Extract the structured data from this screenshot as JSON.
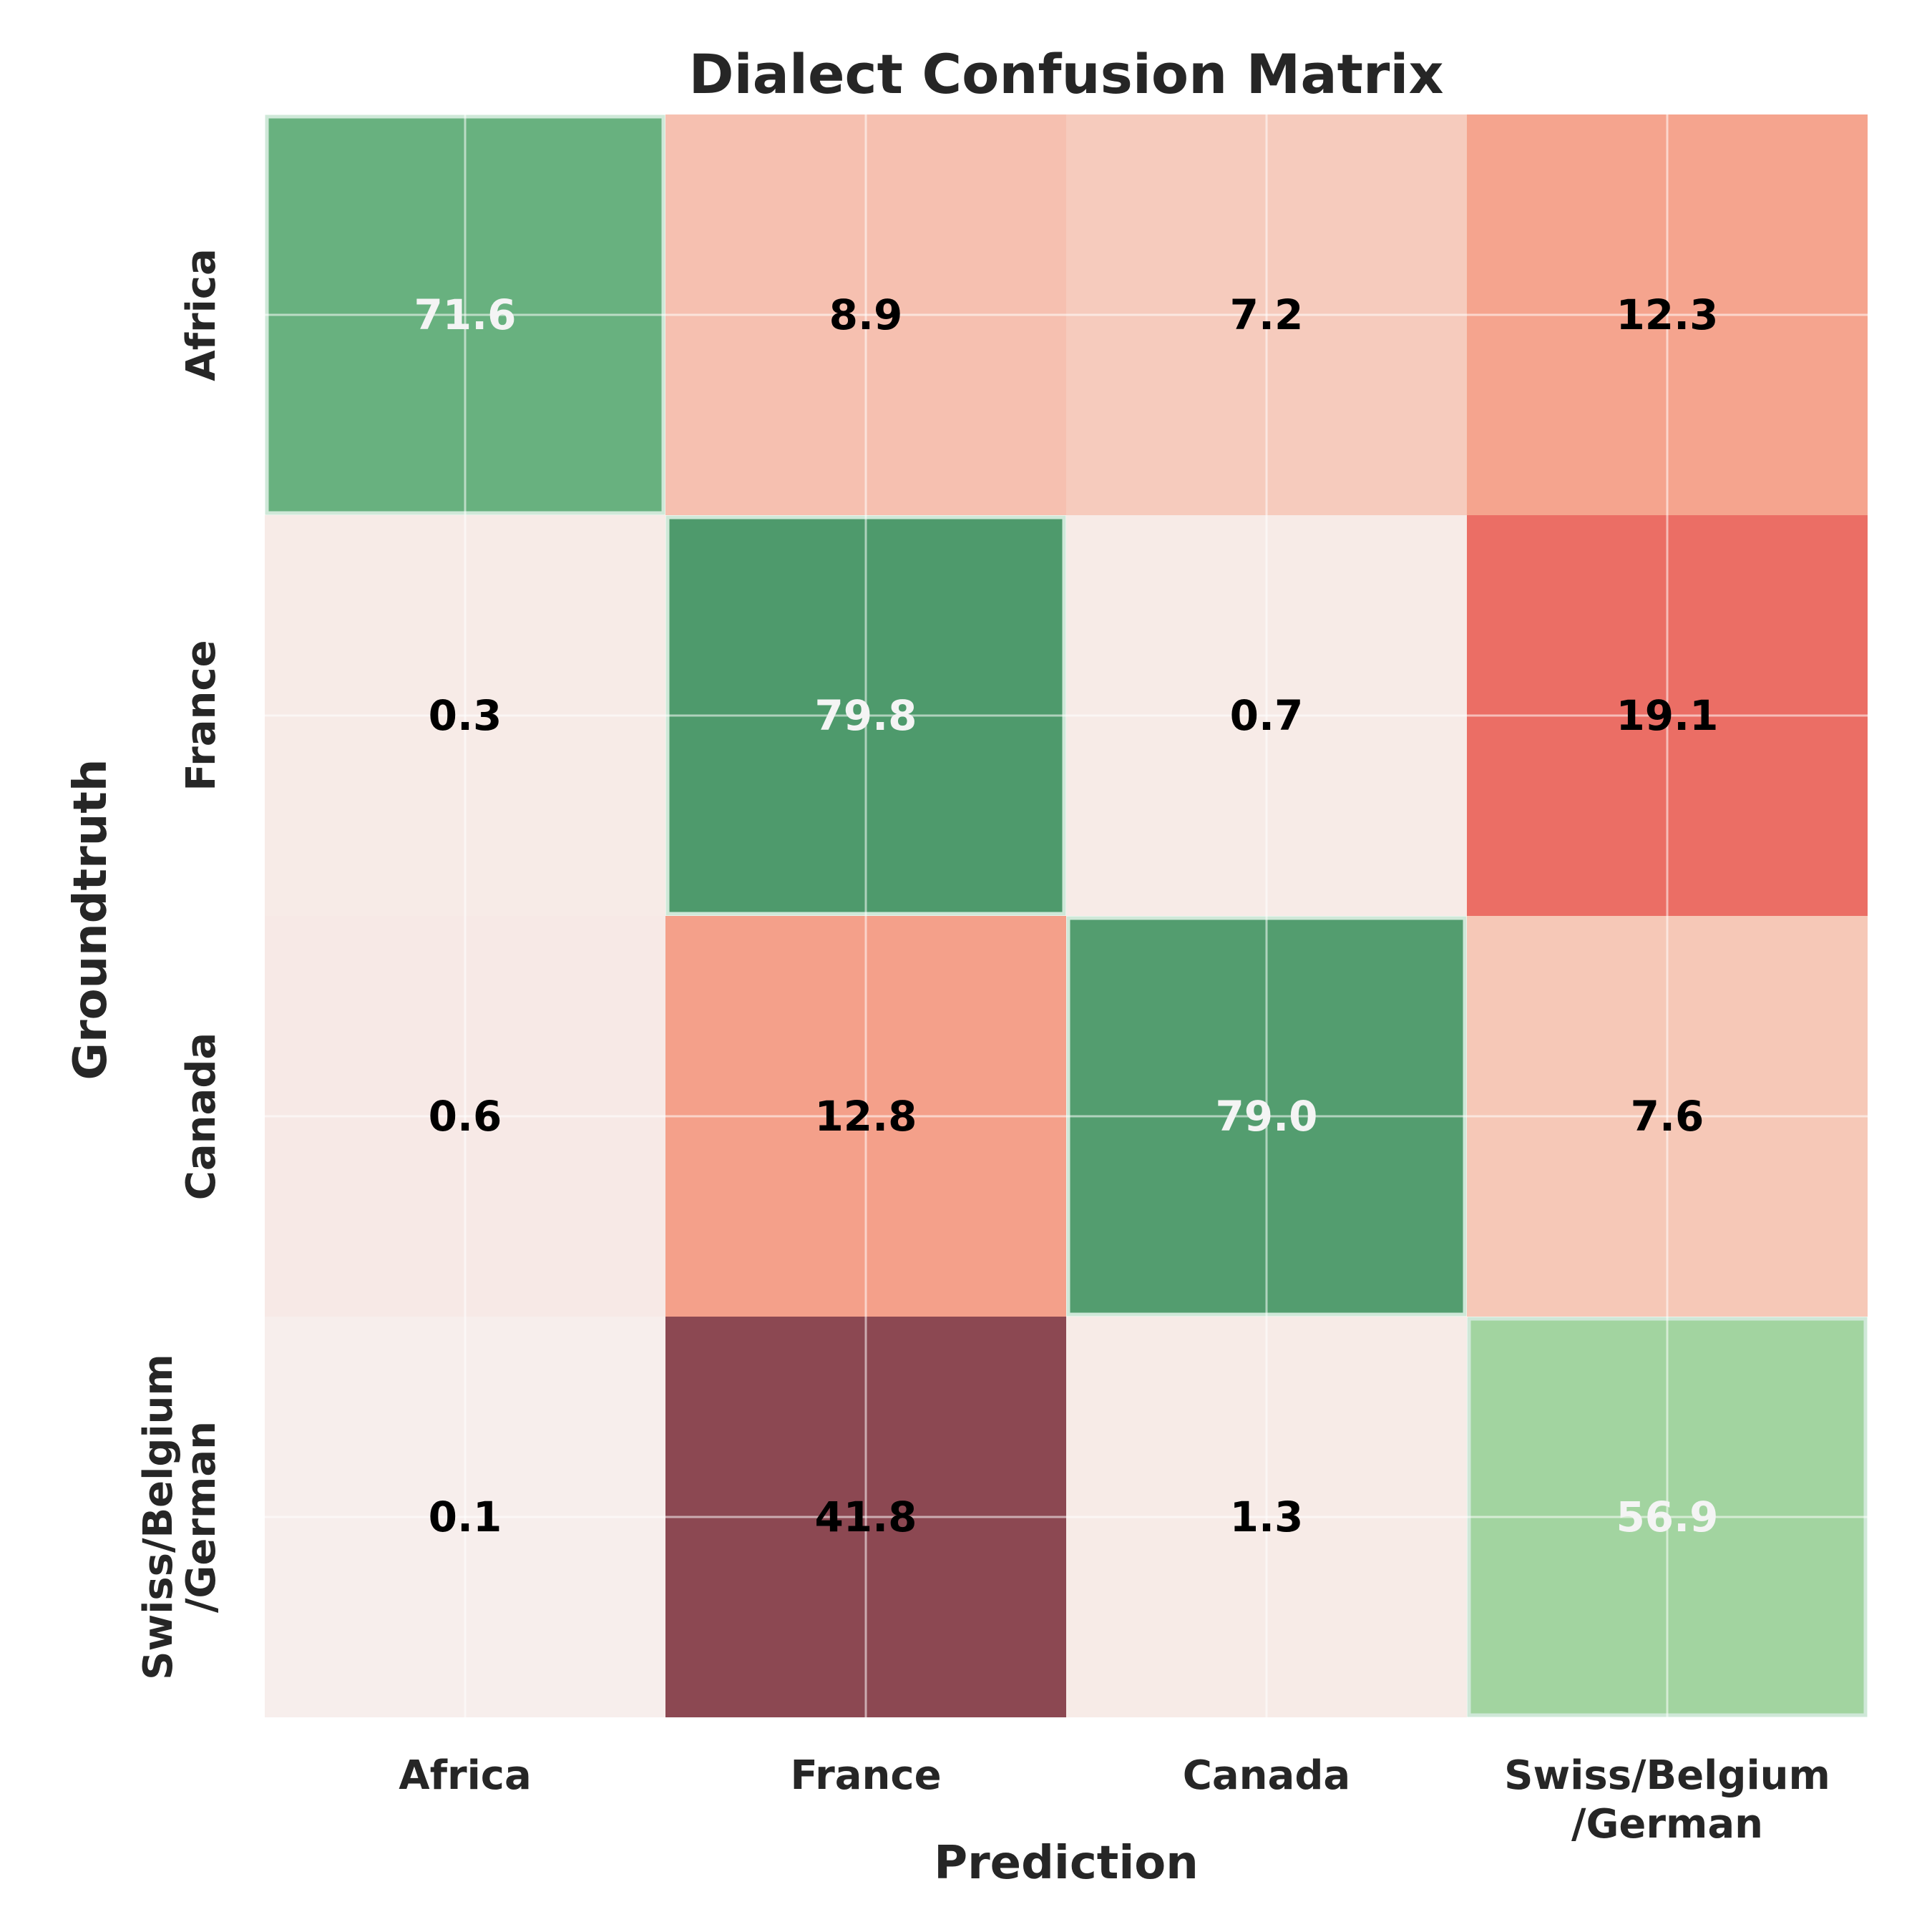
{
  "chart_data": {
    "type": "heatmap",
    "title": "Dialect Confusion Matrix",
    "xlabel": "Prediction",
    "ylabel": "Groundtruth",
    "x_categories": [
      [
        "Africa"
      ],
      [
        "France"
      ],
      [
        "Canada"
      ],
      [
        "Swiss/Belgium",
        "/German"
      ]
    ],
    "y_categories": [
      [
        "Africa"
      ],
      [
        "France"
      ],
      [
        "Canada"
      ],
      [
        "Swiss/Belgium",
        "/German"
      ]
    ],
    "values": [
      [
        71.6,
        8.9,
        7.2,
        12.3
      ],
      [
        0.3,
        79.8,
        0.7,
        19.1
      ],
      [
        0.6,
        12.8,
        79.0,
        7.6
      ],
      [
        0.1,
        41.8,
        1.3,
        56.9
      ]
    ],
    "value_labels": [
      [
        "71.6",
        "8.9",
        "7.2",
        "12.3"
      ],
      [
        "0.3",
        "79.8",
        "0.7",
        "19.1"
      ],
      [
        "0.6",
        "12.8",
        "79.0",
        "7.6"
      ],
      [
        "0.1",
        "41.8",
        "1.3",
        "56.9"
      ]
    ],
    "grid": true,
    "colors": {
      "diagonal": [
        "#68b17f",
        "#4e9a6c",
        "#539d6f",
        "#a2d4a0"
      ],
      "off_diagonal": [
        [
          null,
          "#f6c0b0",
          "#f6cbbd",
          "#f5a48e"
        ],
        [
          "#f7ebe7",
          null,
          "#f7ebe7",
          "#eb6e65"
        ],
        [
          "#f7e9e6",
          "#f4a08a",
          null,
          "#f6c8b7"
        ],
        [
          "#f7eeec",
          "#8c4852",
          "#f7ebe7",
          null
        ]
      ],
      "text_light": "#f4f4f4",
      "text_dark": "#000000",
      "cell_border": "#cfe8d8",
      "grid_line": "#ffffff"
    }
  }
}
